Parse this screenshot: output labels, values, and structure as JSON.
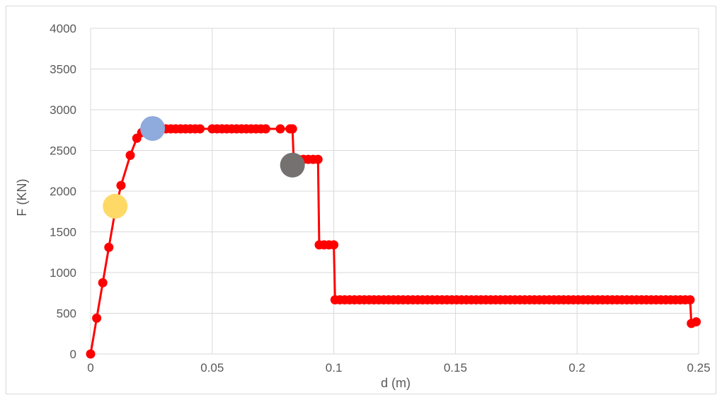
{
  "chart_data": {
    "type": "scatter",
    "title": "",
    "xlabel": "d (m)",
    "ylabel": "F (KN)",
    "xlim": [
      0,
      0.25
    ],
    "ylim": [
      0,
      4000
    ],
    "x_ticks": [
      "0",
      "0.05",
      "0.1",
      "0.15",
      "0.2",
      "0.25"
    ],
    "x_tick_values": [
      0,
      0.05,
      0.1,
      0.15,
      0.2,
      0.25
    ],
    "y_ticks": [
      "0",
      "500",
      "1000",
      "1500",
      "2000",
      "2500",
      "3000",
      "3500",
      "4000"
    ],
    "y_tick_values": [
      0,
      500,
      1000,
      1500,
      2000,
      2500,
      3000,
      3500,
      4000
    ],
    "grid": true,
    "legend": "none",
    "series": [
      {
        "color": "#ff0000",
        "marker": "circle",
        "line": true,
        "points": [
          [
            0,
            0
          ],
          [
            0.0025,
            440
          ],
          [
            0.005,
            875
          ],
          [
            0.0075,
            1310
          ],
          [
            0.01,
            1740
          ],
          [
            0.0125,
            2070
          ],
          [
            0.0163,
            2440
          ],
          [
            0.019,
            2650
          ],
          [
            0.021,
            2720
          ],
          [
            0.023,
            2760
          ],
          [
            0.026,
            2765
          ],
          [
            0.0285,
            2765
          ],
          [
            0.031,
            2765
          ],
          [
            0.033,
            2765
          ],
          [
            0.035,
            2765
          ],
          [
            0.037,
            2765
          ],
          [
            0.039,
            2765
          ],
          [
            0.041,
            2765
          ],
          [
            0.043,
            2765
          ],
          [
            0.045,
            2765
          ],
          [
            0.05,
            2765
          ],
          [
            0.052,
            2765
          ],
          [
            0.054,
            2765
          ],
          [
            0.056,
            2765
          ],
          [
            0.058,
            2765
          ],
          [
            0.06,
            2765
          ],
          [
            0.062,
            2765
          ],
          [
            0.064,
            2765
          ],
          [
            0.066,
            2765
          ],
          [
            0.068,
            2765
          ],
          [
            0.07,
            2765
          ],
          [
            0.072,
            2765
          ],
          [
            0.078,
            2765
          ],
          [
            0.082,
            2765
          ],
          [
            0.083,
            2765
          ],
          [
            0.0835,
            2390
          ],
          [
            0.0855,
            2390
          ],
          [
            0.0875,
            2390
          ],
          [
            0.0895,
            2390
          ],
          [
            0.0915,
            2390
          ],
          [
            0.0935,
            2390
          ],
          [
            0.094,
            1340
          ],
          [
            0.096,
            1340
          ],
          [
            0.098,
            1340
          ],
          [
            0.1,
            1340
          ],
          [
            0.1005,
            665
          ],
          [
            0.1025,
            665
          ],
          [
            0.1045,
            665
          ],
          [
            0.1065,
            665
          ],
          [
            0.1085,
            665
          ],
          [
            0.1105,
            665
          ],
          [
            0.1125,
            665
          ],
          [
            0.1145,
            665
          ],
          [
            0.1165,
            665
          ],
          [
            0.1185,
            665
          ],
          [
            0.1205,
            665
          ],
          [
            0.1225,
            665
          ],
          [
            0.1245,
            665
          ],
          [
            0.1265,
            665
          ],
          [
            0.1285,
            665
          ],
          [
            0.1305,
            665
          ],
          [
            0.1325,
            665
          ],
          [
            0.1345,
            665
          ],
          [
            0.1365,
            665
          ],
          [
            0.1385,
            665
          ],
          [
            0.1405,
            665
          ],
          [
            0.1425,
            665
          ],
          [
            0.1445,
            665
          ],
          [
            0.1465,
            665
          ],
          [
            0.1485,
            665
          ],
          [
            0.1505,
            665
          ],
          [
            0.1525,
            665
          ],
          [
            0.1545,
            665
          ],
          [
            0.1565,
            665
          ],
          [
            0.1585,
            665
          ],
          [
            0.1605,
            665
          ],
          [
            0.1625,
            665
          ],
          [
            0.1645,
            665
          ],
          [
            0.1665,
            665
          ],
          [
            0.1685,
            665
          ],
          [
            0.1705,
            665
          ],
          [
            0.1725,
            665
          ],
          [
            0.1745,
            665
          ],
          [
            0.1765,
            665
          ],
          [
            0.1785,
            665
          ],
          [
            0.1805,
            665
          ],
          [
            0.1825,
            665
          ],
          [
            0.1845,
            665
          ],
          [
            0.1865,
            665
          ],
          [
            0.1885,
            665
          ],
          [
            0.1905,
            665
          ],
          [
            0.1925,
            665
          ],
          [
            0.1945,
            665
          ],
          [
            0.1965,
            665
          ],
          [
            0.1985,
            665
          ],
          [
            0.2005,
            665
          ],
          [
            0.2025,
            665
          ],
          [
            0.2045,
            665
          ],
          [
            0.2065,
            665
          ],
          [
            0.2085,
            665
          ],
          [
            0.2105,
            665
          ],
          [
            0.2125,
            665
          ],
          [
            0.2145,
            665
          ],
          [
            0.2165,
            665
          ],
          [
            0.2185,
            665
          ],
          [
            0.2205,
            665
          ],
          [
            0.2225,
            665
          ],
          [
            0.2245,
            665
          ],
          [
            0.2265,
            665
          ],
          [
            0.2285,
            665
          ],
          [
            0.2305,
            665
          ],
          [
            0.2325,
            665
          ],
          [
            0.2345,
            665
          ],
          [
            0.2365,
            665
          ],
          [
            0.2385,
            665
          ],
          [
            0.2405,
            665
          ],
          [
            0.2425,
            665
          ],
          [
            0.2445,
            665
          ],
          [
            0.2465,
            665
          ],
          [
            0.247,
            375
          ],
          [
            0.249,
            395
          ]
        ]
      }
    ],
    "highlight_points": [
      {
        "x": 0.0101,
        "y": 1815,
        "color": "#ffd966"
      },
      {
        "x": 0.0255,
        "y": 2770,
        "color": "#8faadc"
      },
      {
        "x": 0.083,
        "y": 2320,
        "color": "#767171"
      }
    ]
  }
}
